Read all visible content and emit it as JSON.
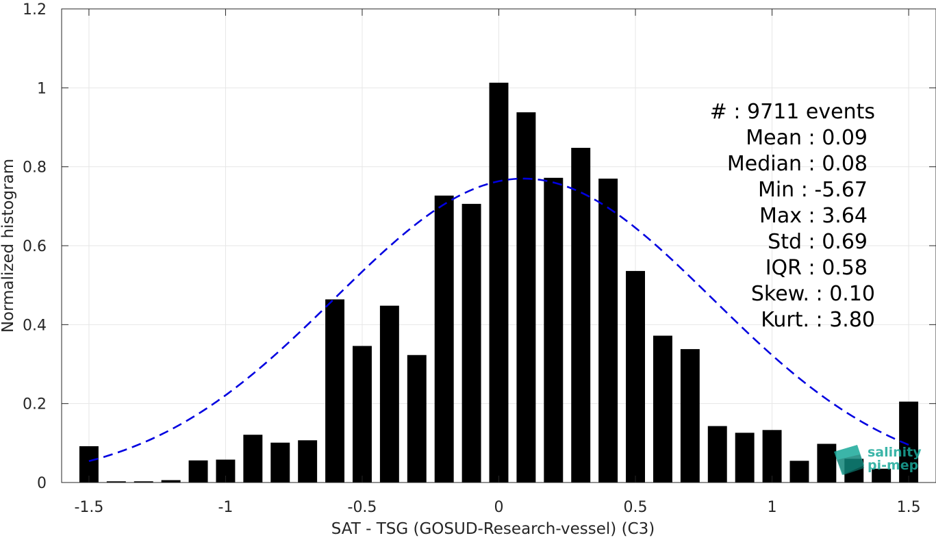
{
  "chart_data": {
    "type": "bar",
    "xlabel": "SAT - TSG (GOSUD-Research-vessel) (C3)",
    "ylabel": "Normalized histogram",
    "xlim": [
      -1.6,
      1.6
    ],
    "ylim": [
      0,
      1.2
    ],
    "xticks": [
      -1.5,
      -1,
      -0.5,
      0,
      0.5,
      1,
      1.5
    ],
    "xtick_labels": [
      "-1.5",
      "-1",
      "-0.5",
      "0",
      "0.5",
      "1",
      "1.5"
    ],
    "yticks": [
      0,
      0.2,
      0.4,
      0.6,
      0.8,
      1,
      1.2
    ],
    "ytick_labels": [
      "0",
      "0.2",
      "0.4",
      "0.6",
      "0.8",
      "1",
      "1.2"
    ],
    "grid": true,
    "bar_width": 0.07,
    "bar_color": "#000000",
    "bins": [
      -1.5,
      -1.4,
      -1.3,
      -1.2,
      -1.1,
      -1.0,
      -0.9,
      -0.8,
      -0.7,
      -0.6,
      -0.5,
      -0.4,
      -0.3,
      -0.2,
      -0.1,
      0.0,
      0.1,
      0.2,
      0.3,
      0.4,
      0.5,
      0.6,
      0.7,
      0.8,
      0.9,
      1.0,
      1.1,
      1.2,
      1.3,
      1.4,
      1.5
    ],
    "values": [
      0.092,
      0.003,
      0.003,
      0.006,
      0.056,
      0.058,
      0.121,
      0.101,
      0.107,
      0.464,
      0.346,
      0.448,
      0.323,
      0.727,
      0.706,
      1.013,
      0.938,
      0.772,
      0.848,
      0.77,
      0.536,
      0.372,
      0.338,
      0.143,
      0.126,
      0.133,
      0.055,
      0.098,
      0.06,
      0.035,
      0.205
    ],
    "fit_curve": {
      "type": "gaussian",
      "mean": 0.09,
      "std": 0.69,
      "amplitude": 0.77,
      "color": "#0000e0",
      "style": "dashed",
      "x_range": [
        -1.5,
        1.5
      ]
    },
    "stats": {
      "events": "#  : 9711 events",
      "mean": "Mean : 0.09",
      "median": "Median : 0.08",
      "min": "Min : -5.67",
      "max": "Max : 3.64",
      "std": "Std : 0.69",
      "iqr": "IQR : 0.58",
      "skew": "Skew. : 0.10",
      "kurt": "Kurt. : 3.80"
    }
  },
  "logo": {
    "line1": "salinity",
    "line2": "pi-mep",
    "color": "#1aa99a"
  }
}
